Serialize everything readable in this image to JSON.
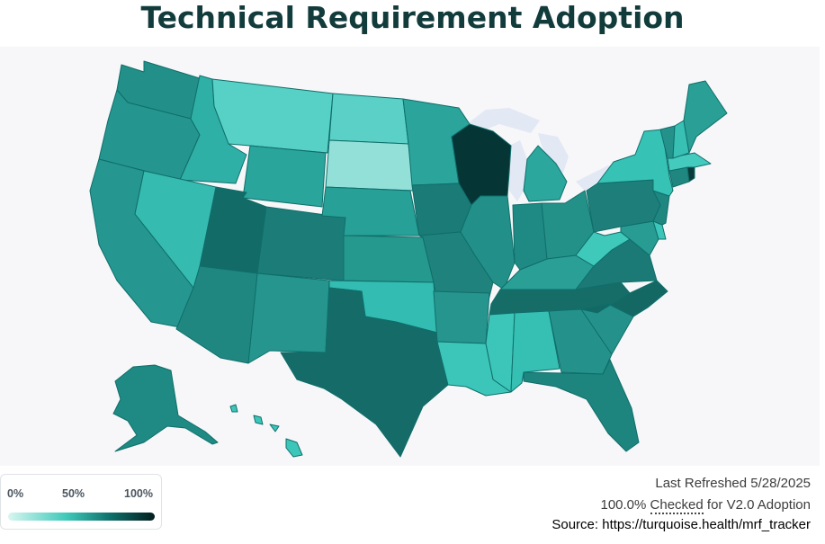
{
  "title": "Technical Requirement Adoption",
  "legend": {
    "labels": [
      "0%",
      "50%",
      "100%"
    ],
    "gradient_colors": [
      "#d8f6f1",
      "#3ec9b9",
      "#0f6f6a",
      "#031e1e"
    ]
  },
  "footer": {
    "last_refreshed": "Last Refreshed 5/28/2025",
    "adoption_value": "100.0%",
    "checked_label": "Checked",
    "adoption_suffix": "for V2.0 Adoption",
    "source": "Source: https://turquoise.health/mrf_tracker"
  },
  "map": {
    "type": "choropleth",
    "region": "United States",
    "highlighted_state": "WI",
    "color_scale": {
      "low": "#d8f6f1",
      "mid": "#3ec9b9",
      "high": "#031e1e"
    },
    "state_colors": {
      "WA": "#229089",
      "OR": "#25968f",
      "CA": "#259790",
      "ID": "#2fb0a6",
      "NV": "#36bbb0",
      "MT": "#57d0c5",
      "WY": "#29a59c",
      "UT": "#126b67",
      "AZ": "#208780",
      "CO": "#1c7d78",
      "NM": "#25958e",
      "ND": "#5ad0c6",
      "SD": "#93e0d8",
      "NE": "#27a097",
      "KS": "#26998f",
      "OK": "#33bcb1",
      "TX": "#156b67",
      "MN": "#2ba49b",
      "IA": "#1b7b76",
      "MO": "#1f827c",
      "AR": "#26958e",
      "LA": "#3cc6ba",
      "WI": "#053534",
      "IL": "#229089",
      "MI": "#2ba79d",
      "IN": "#1f8a83",
      "OH": "#249189",
      "KY": "#2a9f96",
      "TN": "#166d68",
      "MS": "#3cc6ba",
      "AL": "#36c0b4",
      "GA": "#24928b",
      "FL": "#1d847e",
      "SC": "#24928b",
      "NC": "#136864",
      "VA": "#1b7a75",
      "WV": "#3ec9bb",
      "MD": "#289b92",
      "DE": "#3cc6ba",
      "PA": "#1e7f7a",
      "NJ": "#1f8680",
      "NY": "#37c2b6",
      "CT": "#208780",
      "RI": "#0a3b39",
      "MA": "#45cabe",
      "VT": "#24928b",
      "NH": "#39c0b4",
      "ME": "#2a9f96",
      "AK": "#1e8a83",
      "HI": "#3cc6ba"
    }
  }
}
